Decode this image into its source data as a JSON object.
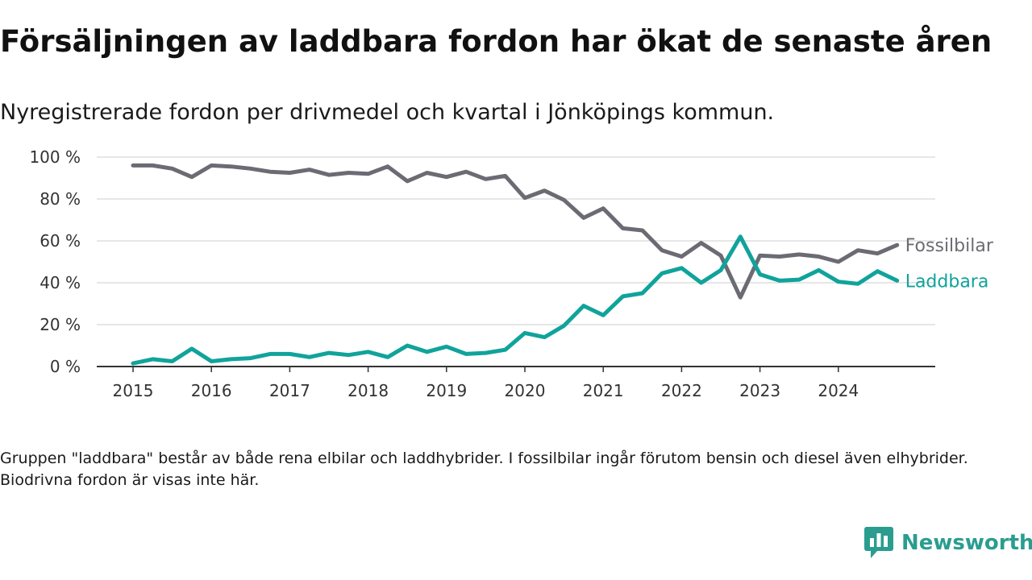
{
  "title": "Försäljningen av laddbara fordon har ökat de senaste åren",
  "subtitle": "Nyregistrerade fordon per drivmedel och kvartal i Jönköpings kommun.",
  "footnote": "Gruppen \"laddbara\" består av både rena elbilar och laddhybrider. I fossilbilar ingår förutom bensin och diesel även elhybrider. Biodrivna fordon är visas inte här.",
  "brand": {
    "name": "Newsworthy",
    "icon": "newsworthy-logo-icon"
  },
  "colors": {
    "fossil": "#6b6b73",
    "laddbara": "#10a39b",
    "grid": "#dddddd",
    "axis": "#333333",
    "brand": "#2a9d8f"
  },
  "chart_data": {
    "type": "line",
    "title": "Försäljningen av laddbara fordon har ökat de senaste åren",
    "xlabel": "",
    "ylabel": "",
    "ylim": [
      0,
      100
    ],
    "yticks": [
      0,
      20,
      40,
      60,
      80,
      100
    ],
    "ytick_labels": [
      "0 %",
      "20 %",
      "40 %",
      "60 %",
      "80 %",
      "100 %"
    ],
    "xticks": [
      "2015",
      "2016",
      "2017",
      "2018",
      "2019",
      "2020",
      "2021",
      "2022",
      "2023",
      "2024"
    ],
    "x_start": "2015 Q1",
    "x_end": "2024 Q4",
    "grid": true,
    "legend": "direct labels at line ends",
    "categories": [
      "2015 Q1",
      "2015 Q2",
      "2015 Q3",
      "2015 Q4",
      "2016 Q1",
      "2016 Q2",
      "2016 Q3",
      "2016 Q4",
      "2017 Q1",
      "2017 Q2",
      "2017 Q3",
      "2017 Q4",
      "2018 Q1",
      "2018 Q2",
      "2018 Q3",
      "2018 Q4",
      "2019 Q1",
      "2019 Q2",
      "2019 Q3",
      "2019 Q4",
      "2020 Q1",
      "2020 Q2",
      "2020 Q3",
      "2020 Q4",
      "2021 Q1",
      "2021 Q2",
      "2021 Q3",
      "2021 Q4",
      "2022 Q1",
      "2022 Q2",
      "2022 Q3",
      "2022 Q4",
      "2023 Q1",
      "2023 Q2",
      "2023 Q3",
      "2023 Q4",
      "2024 Q1",
      "2024 Q2",
      "2024 Q3",
      "2024 Q4"
    ],
    "series": [
      {
        "name": "Fossilbilar",
        "color": "#6b6b73",
        "values": [
          96,
          96,
          94.5,
          90.5,
          96,
          95.5,
          94.5,
          93,
          92.5,
          94,
          91.5,
          92.5,
          92,
          95.5,
          88.5,
          92.5,
          90.5,
          93,
          89.5,
          91,
          80.5,
          84,
          79.5,
          71,
          75.5,
          66,
          65,
          55.5,
          52.5,
          59,
          53,
          33,
          53,
          52.5,
          53.5,
          52.5,
          50,
          55.5,
          54,
          58
        ]
      },
      {
        "name": "Laddbara",
        "color": "#10a39b",
        "values": [
          1.5,
          3.5,
          2.5,
          8.5,
          2.5,
          3.5,
          4,
          6,
          6,
          4.5,
          6.5,
          5.5,
          7,
          4.5,
          10,
          7,
          9.5,
          6,
          6.5,
          8,
          16,
          14,
          19.5,
          29,
          24.5,
          33.5,
          35,
          44.5,
          47,
          40,
          46,
          62,
          44,
          41,
          41.5,
          46,
          40.5,
          39.5,
          45.5,
          41
        ]
      }
    ]
  }
}
